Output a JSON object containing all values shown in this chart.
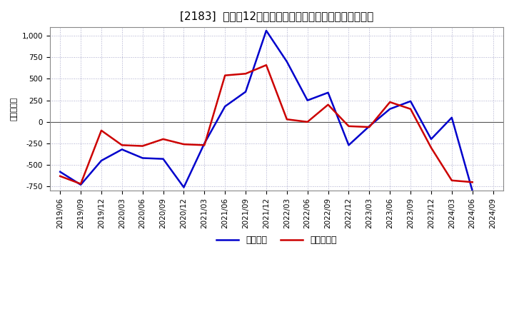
{
  "title": "[2183]  利益だ12か月移動合計の対前年同期増減額の推移",
  "ylabel": "（百万円）",
  "legend_label_blue": "経常利益",
  "legend_label_red": "当期素利益",
  "background_color": "#ffffff",
  "plot_bg_color": "#ffffff",
  "grid_color": "#aaaacc",
  "x_labels": [
    "2019/06",
    "2019/09",
    "2019/12",
    "2020/03",
    "2020/06",
    "2020/09",
    "2020/12",
    "2021/03",
    "2021/06",
    "2021/09",
    "2021/12",
    "2022/03",
    "2022/06",
    "2022/09",
    "2022/12",
    "2023/03",
    "2023/06",
    "2023/09",
    "2023/12",
    "2024/03",
    "2024/06",
    "2024/09"
  ],
  "keijo_rieki": [
    -580,
    -730,
    -450,
    -320,
    -420,
    -430,
    -760,
    -250,
    180,
    350,
    1060,
    700,
    250,
    340,
    -270,
    -50,
    150,
    240,
    -200,
    50,
    -800,
    null
  ],
  "touki_junseki": [
    -630,
    -720,
    -100,
    -270,
    -280,
    -200,
    -260,
    -270,
    540,
    560,
    660,
    30,
    0,
    200,
    -50,
    -60,
    230,
    150,
    -300,
    -680,
    -700,
    null
  ],
  "line_color_blue": "#0000cc",
  "line_color_red": "#cc0000",
  "ylim": [
    -800,
    1100
  ],
  "yticks": [
    -750,
    -500,
    -250,
    0,
    250,
    500,
    750,
    1000
  ],
  "line_width": 1.8,
  "title_fontsize": 11,
  "tick_fontsize": 7.5,
  "ylabel_fontsize": 8,
  "legend_fontsize": 9
}
